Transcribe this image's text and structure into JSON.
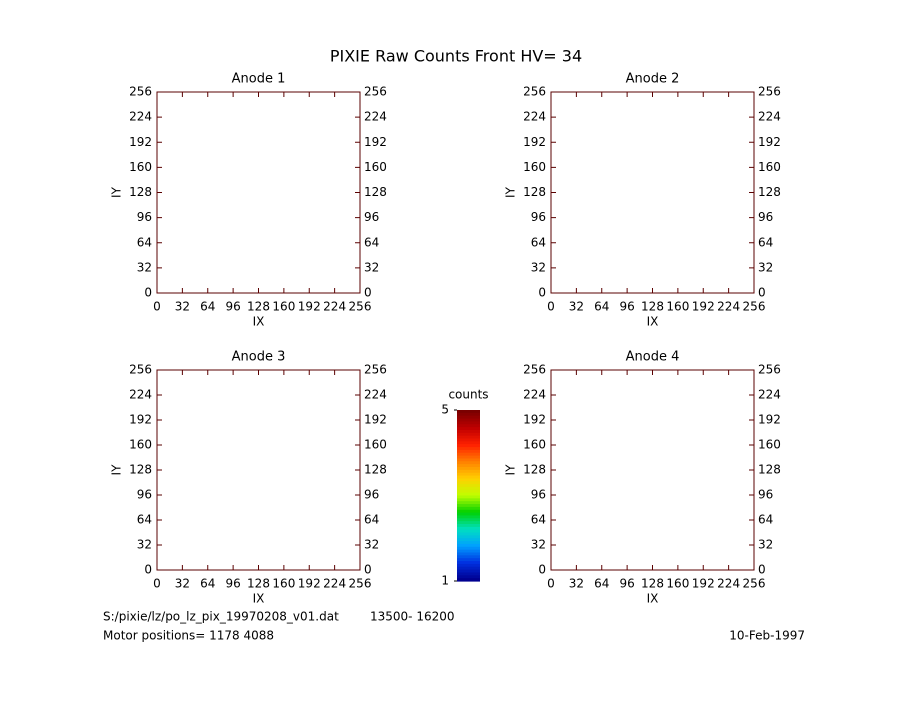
{
  "title": "PIXIE Raw Counts Front HV= 34",
  "chart_data": [
    {
      "type": "image",
      "title": "Anode 1",
      "xlabel": "IX",
      "ylabel": "IY",
      "xlim": [
        0,
        256
      ],
      "ylim": [
        0,
        256
      ],
      "xticks": [
        0,
        32,
        64,
        96,
        128,
        160,
        192,
        224,
        256
      ],
      "yticks": [
        0,
        32,
        64,
        96,
        128,
        160,
        192,
        224,
        256
      ]
    },
    {
      "type": "image",
      "title": "Anode 2",
      "xlabel": "IX",
      "ylabel": "IY",
      "xlim": [
        0,
        256
      ],
      "ylim": [
        0,
        256
      ],
      "xticks": [
        0,
        32,
        64,
        96,
        128,
        160,
        192,
        224,
        256
      ],
      "yticks": [
        0,
        32,
        64,
        96,
        128,
        160,
        192,
        224,
        256
      ]
    },
    {
      "type": "image",
      "title": "Anode 3",
      "xlabel": "IX",
      "ylabel": "IY",
      "xlim": [
        0,
        256
      ],
      "ylim": [
        0,
        256
      ],
      "xticks": [
        0,
        32,
        64,
        96,
        128,
        160,
        192,
        224,
        256
      ],
      "yticks": [
        0,
        32,
        64,
        96,
        128,
        160,
        192,
        224,
        256
      ]
    },
    {
      "type": "image",
      "title": "Anode 4",
      "xlabel": "IX",
      "ylabel": "IY",
      "xlim": [
        0,
        256
      ],
      "ylim": [
        0,
        256
      ],
      "xticks": [
        0,
        32,
        64,
        96,
        128,
        160,
        192,
        224,
        256
      ],
      "yticks": [
        0,
        32,
        64,
        96,
        128,
        160,
        192,
        224,
        256
      ]
    }
  ],
  "colorbar": {
    "label": "counts",
    "lim": [
      1,
      5
    ],
    "ticks": [
      1,
      5
    ]
  },
  "footer": {
    "file": "S:/pixie/lz/po_lz_pix_19970208_v01.dat",
    "range": "13500- 16200",
    "motor": "Motor positions= 1178 4088",
    "date": "10-Feb-1997"
  }
}
